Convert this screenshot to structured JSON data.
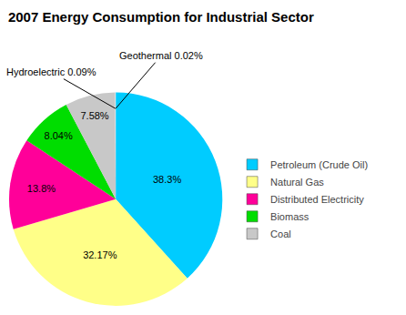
{
  "chart_data": {
    "type": "pie",
    "title": "2007 Energy Consumption for Industrial Sector",
    "categories": [
      "Petroleum (Crude Oil)",
      "Natural Gas",
      "Distributed Electricity",
      "Biomass",
      "Coal",
      null,
      null
    ],
    "values": [
      38.3,
      32.17,
      13.8,
      8.04,
      7.58,
      0.09,
      0.02
    ],
    "value_labels": [
      "38.3%",
      "32.17%",
      "13.8%",
      "8.04%",
      "7.58%",
      "Hydroelectric 0.09%",
      "Geothermal 0.02%"
    ],
    "colors": [
      "#00CCFF",
      "#FFFF88",
      "#FF0099",
      "#00DD00",
      "#C8C8C8",
      "#D8D8D8",
      "#E8E8E8"
    ],
    "data_labels": true,
    "legend": "right"
  }
}
